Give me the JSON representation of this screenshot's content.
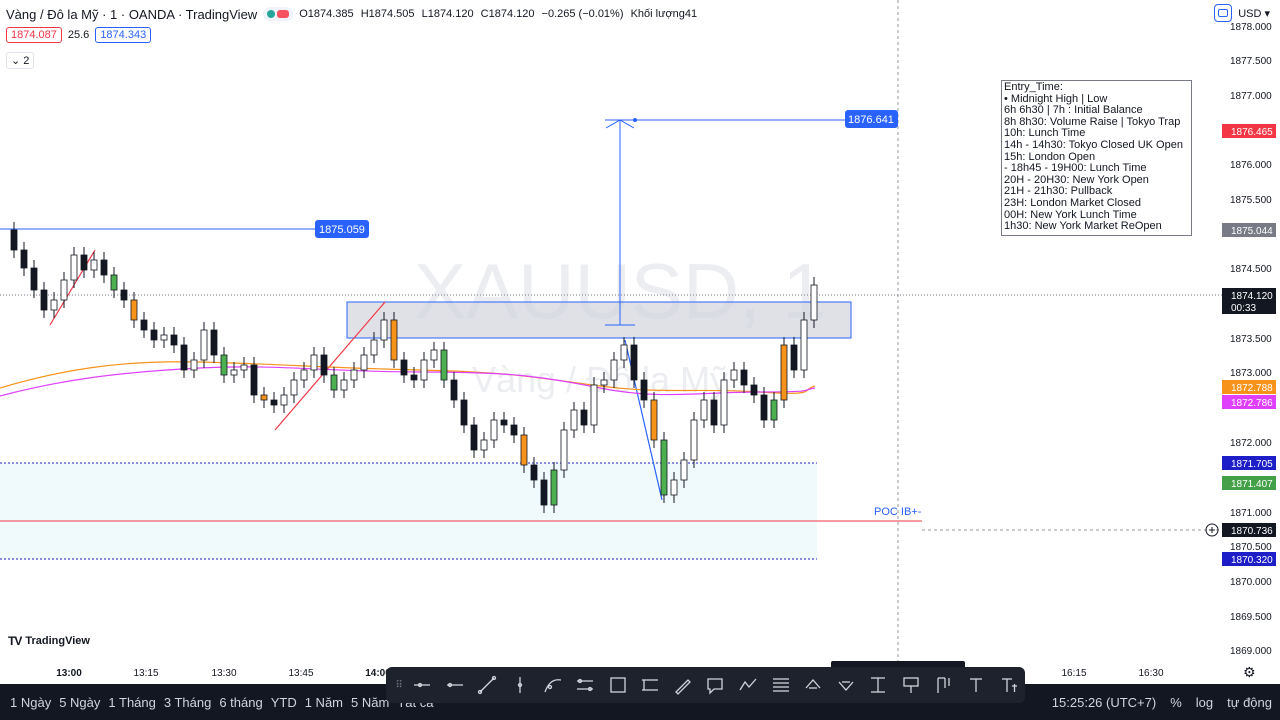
{
  "header": {
    "symbol_title": "Vàng / Đô la Mỹ · 1 · OANDA · TradingView",
    "ohlc": {
      "open": "O1874.385",
      "high": "H1874.505",
      "low": "L1874.120",
      "close": "C1874.120",
      "change": "−0.265 (−0.01%)",
      "volume": "Khối lượng41"
    },
    "bid": "1874.087",
    "spread": "25.6",
    "ask": "1874.343",
    "collapse_label": "2",
    "currency": "USD"
  },
  "watermark": {
    "symbol": "XAUUSD, 1",
    "name": "Vàng / Đô la Mỹ"
  },
  "entry_box": {
    "lines": [
      "Entry_Time:",
      "• Midnight High | Low",
      "6h 6h30 | 7h : Initial Balance",
      "8h 8h30: Volume Raise | Tokyo Trap",
      "10h: Lunch Time",
      "14h - 14h30: Tokyo Closed UK Open",
      "15h: London Open",
      "- 18h45 - 19H00: Lunch Time",
      "20H - 20H30: New York Open",
      "21H - 21h30: Pullback",
      "23H: London Market Closed",
      "00H: New York Lunch Time",
      "1h30: New York Market ReOpen"
    ]
  },
  "annotations": {
    "level_left_label": "1875.059",
    "target_label": "1876.641",
    "poc_label": "POC IB+-"
  },
  "price_axis": {
    "ticks": [
      "1878.000",
      "1877.500",
      "1877.000",
      "1876.000",
      "1875.500",
      "1874.500",
      "1873.500",
      "1873.000",
      "1872.000",
      "1871.000",
      "1870.500",
      "1870.000",
      "1869.500",
      "1869.000"
    ],
    "badges": [
      {
        "text": "1876.465",
        "bg": "#f23645",
        "fg": "#ffffff"
      },
      {
        "text": "1875.044",
        "bg": "#787b86",
        "fg": "#ffffff"
      },
      {
        "text": "1874.120",
        "bg": "#131722",
        "fg": "#ffffff"
      },
      {
        "text": "00:33",
        "bg": "#131722",
        "fg": "#ffffff"
      },
      {
        "text": "1872.788",
        "bg": "#f7931a",
        "fg": "#ffffff"
      },
      {
        "text": "1872.786",
        "bg": "#e040fb",
        "fg": "#ffffff"
      },
      {
        "text": "1871.705",
        "bg": "#1e1ec8",
        "fg": "#ffffff"
      },
      {
        "text": "1871.407",
        "bg": "#43a047",
        "fg": "#ffffff"
      },
      {
        "text": "1870.736",
        "bg": "#131722",
        "fg": "#ffffff"
      },
      {
        "text": "1870.320",
        "bg": "#1e1ec8",
        "fg": "#ffffff"
      }
    ]
  },
  "time_axis": {
    "ticks": [
      "13:00",
      "13:15",
      "13:30",
      "13:45",
      "14:00",
      "16:15",
      "16:30"
    ]
  },
  "bottom_bar": {
    "ranges": [
      "1 Ngày",
      "5 Ngày",
      "1 Tháng",
      "3 Tháng",
      "6 tháng",
      "YTD",
      "1 Năm",
      "5 Năm",
      "Tất cả"
    ],
    "clock": "15:25:26 (UTC+7)",
    "percent": "%",
    "log": "log",
    "auto": "tự động"
  },
  "branding": {
    "logo_text": "TradingView"
  },
  "colors": {
    "up": "#26a69a",
    "down": "#131722",
    "bull_green": "#4caf50",
    "ma_orange": "#f7931a",
    "ma_magenta": "#e040fb",
    "accent_blue": "#2962ff",
    "red_line": "#f23645"
  },
  "drawing_tools": [
    "ray-icon",
    "horizontal-line-icon",
    "trend-line-icon",
    "vertical-line-icon",
    "curve-icon",
    "parallel-channel-icon",
    "rectangle-icon",
    "range-icon",
    "brush-icon",
    "callout-icon",
    "path-icon",
    "fib-icon",
    "arrow-up-icon",
    "arrow-down-icon",
    "price-range-icon",
    "flag-icon",
    "long-short-icon",
    "text-icon",
    "text-price-icon"
  ]
}
